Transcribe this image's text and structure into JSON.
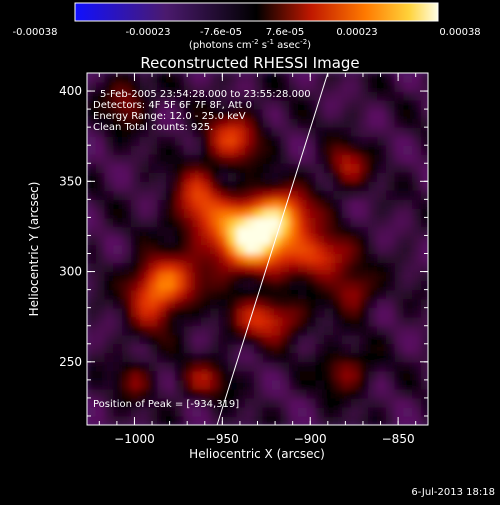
{
  "colorbar": {
    "labels": [
      "-0.00038",
      "-0.00023",
      "-7.6e-05",
      "7.6e-05",
      "0.00023",
      "0.00038"
    ],
    "units_prefix": "(photons cm",
    "units_exp1": "-2",
    "units_mid": " s",
    "units_exp2": "-1",
    "units_mid2": " asec",
    "units_exp3": "-2",
    "units_suffix": ")"
  },
  "chart_data": {
    "type": "heatmap",
    "title": "Reconstructed RHESSI Image",
    "xlabel": "Heliocentric X (arcsec)",
    "ylabel": "Heliocentric Y (arcsec)",
    "xlim": [
      -1027,
      -833
    ],
    "ylim": [
      215,
      410
    ],
    "x_ticks": [
      -1000,
      -950,
      -900,
      -850
    ],
    "x_tick_labels": [
      "−1000",
      "−950",
      "−900",
      "−850"
    ],
    "y_ticks": [
      250,
      300,
      350,
      400
    ],
    "y_tick_labels": [
      "250",
      "300",
      "350",
      "400"
    ],
    "colormap": [
      "#1010ff",
      "#3a1a90",
      "#4b1a6e",
      "#5a1060",
      "#000000",
      "#8a0000",
      "#dd2a00",
      "#ff7a00",
      "#ffd23a",
      "#ffffe6"
    ],
    "info_lines": [
      "5-Feb-2005 23:54:28.000 to 23:55:28.000",
      "Detectors: 4F 5F 6F 7F 8F, Att 0",
      "Energy Range: 12.0 - 25.0 keV",
      "Clean    Total counts: 925."
    ],
    "peak_label": "Position of Peak = [-934,319]",
    "peak": [
      -934,
      319
    ],
    "limb_line": [
      [
        -953,
        215
      ],
      [
        -890,
        410
      ]
    ]
  },
  "footer": {
    "timestamp": "6-Jul-2013 18:18"
  }
}
